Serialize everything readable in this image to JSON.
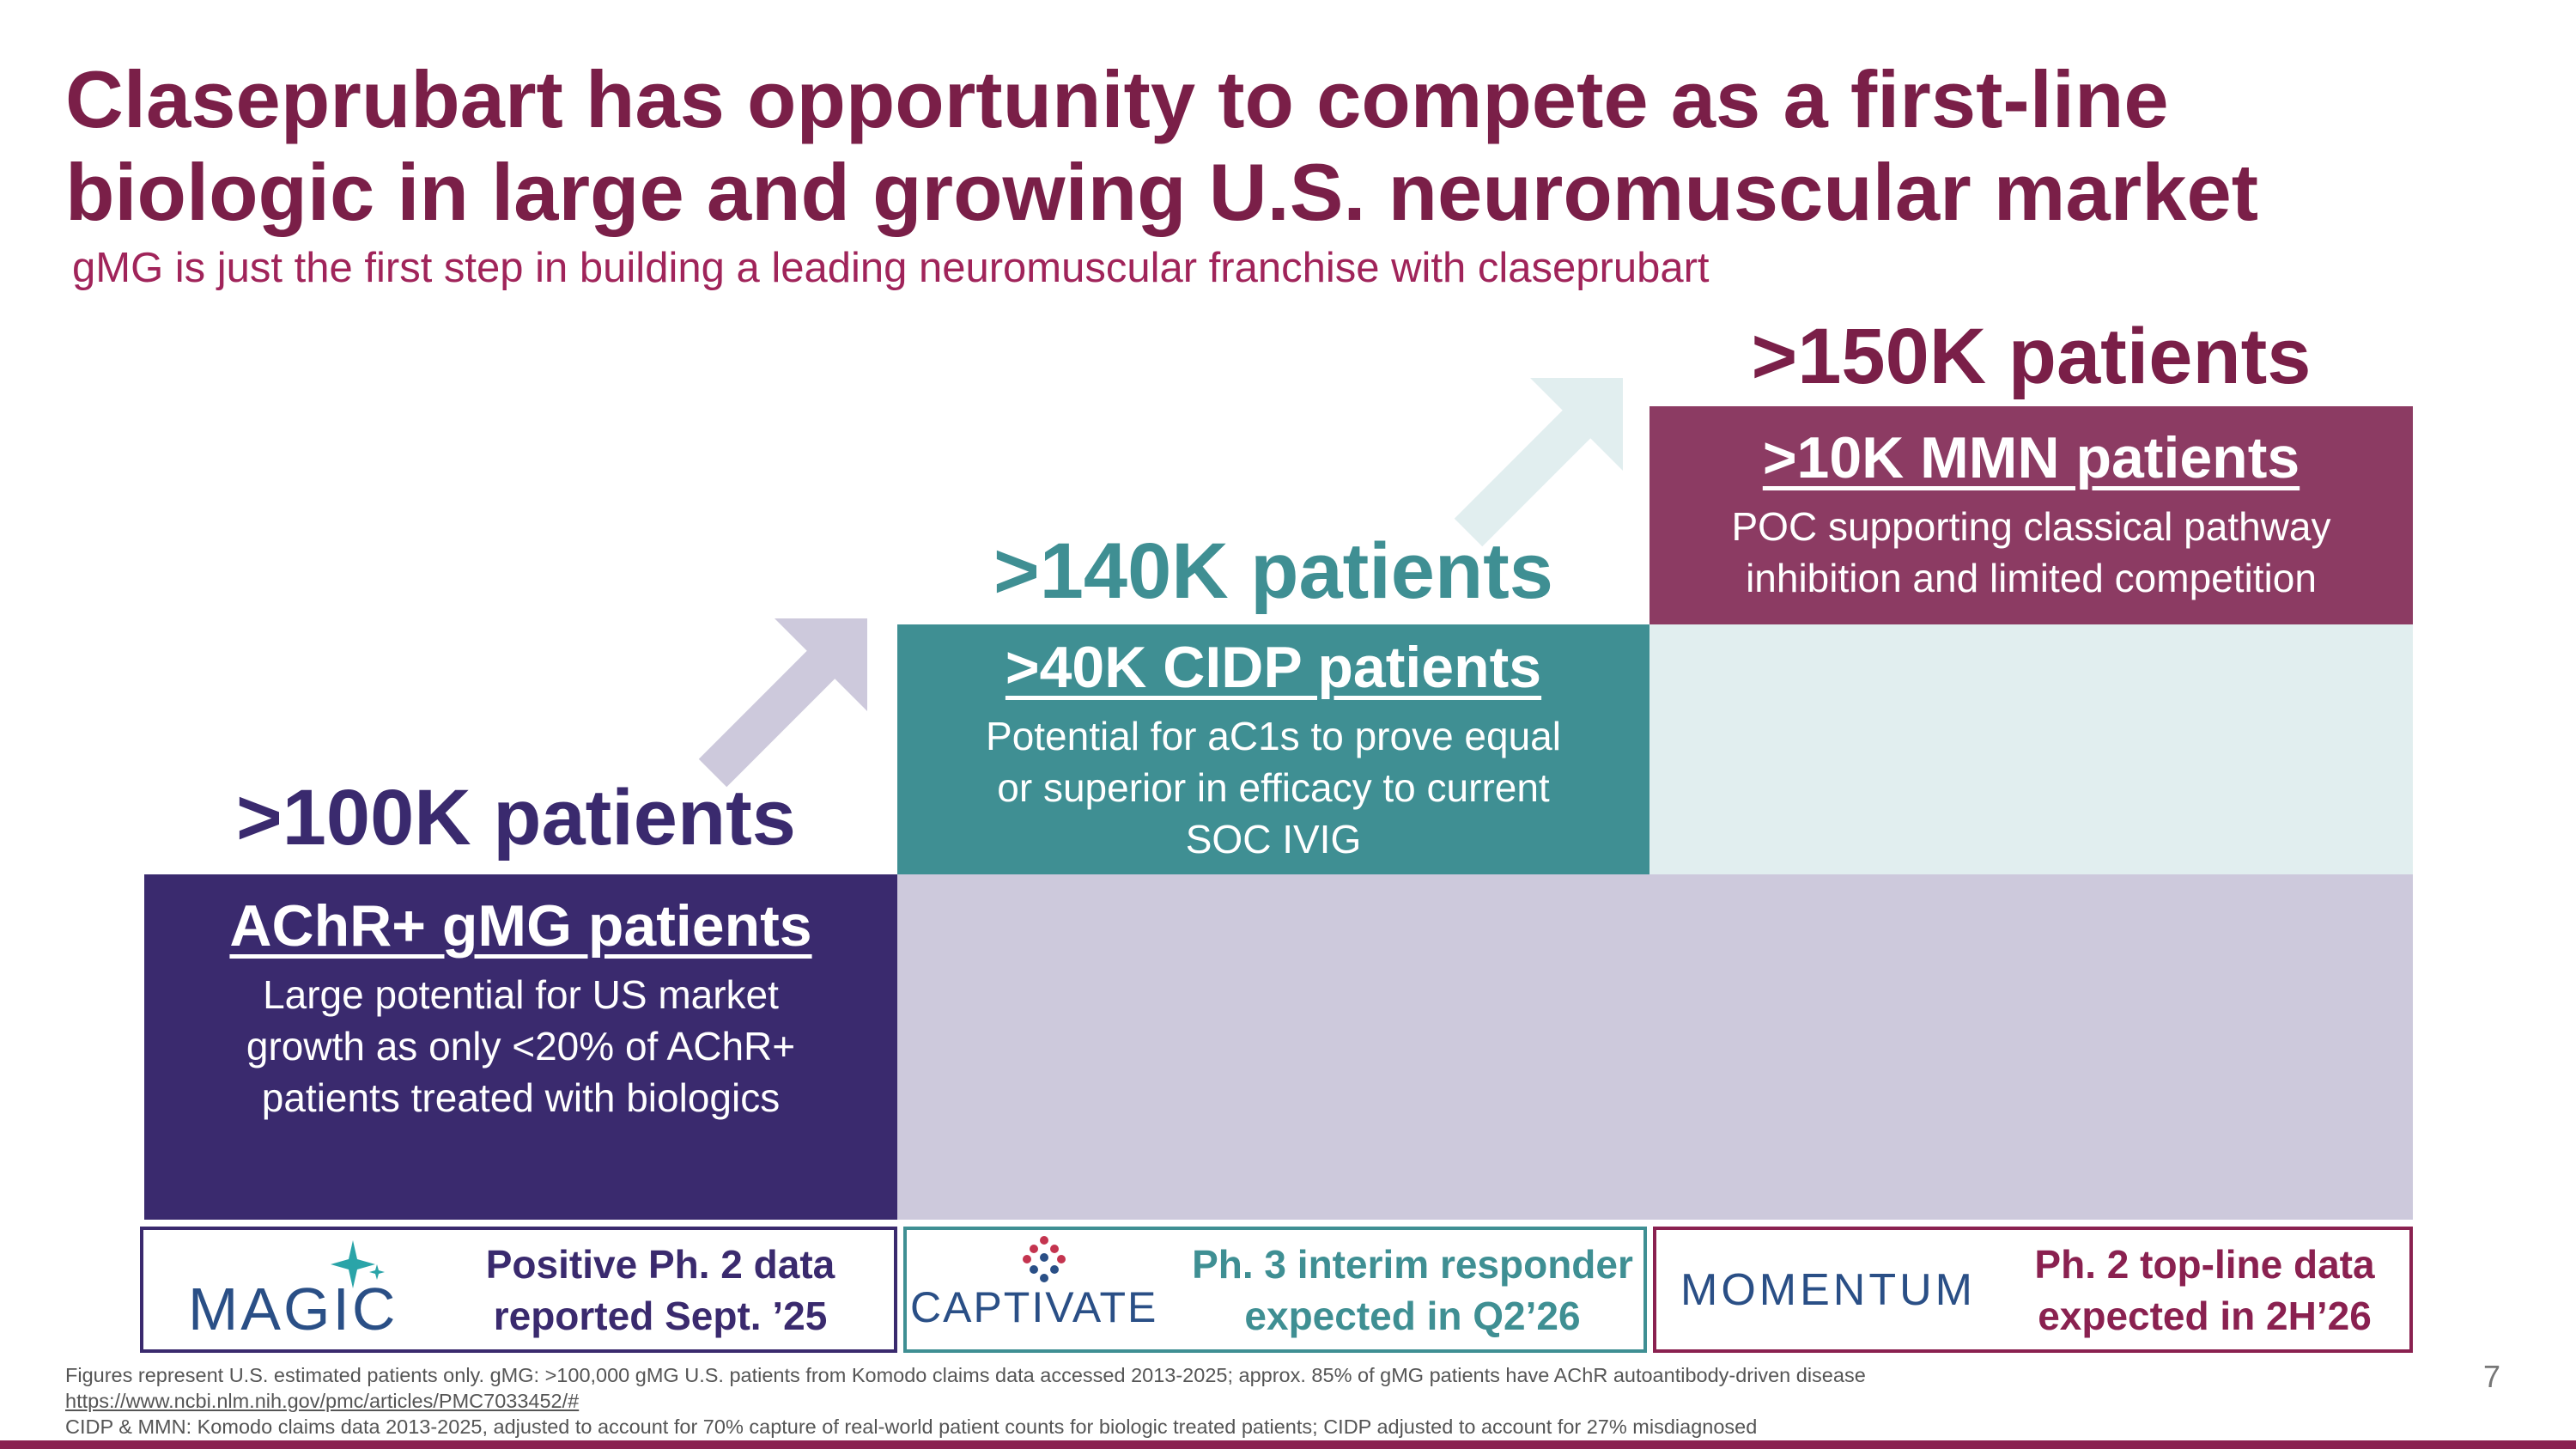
{
  "header": {
    "title_line1": "Claseprubart has opportunity to compete as a first-line",
    "title_line2": "biologic in large and growing U.S. neuromuscular market",
    "subtitle": "gMG is just the first step in building a leading neuromuscular franchise with claseprubart"
  },
  "tiers": [
    {
      "total": ">100K patients",
      "heading": "AChR+ gMG patients",
      "body_lines": [
        "Large potential for US market",
        "growth as only <20% of AChR+",
        "patients treated with biologics"
      ],
      "color": "#3a2a6e",
      "light_color": "#cdc9dc"
    },
    {
      "total": ">140K patients",
      "heading": ">40K CIDP patients",
      "body_lines": [
        "Potential for aC1s to prove equal",
        "or superior in efficacy to current",
        "SOC IVIG"
      ],
      "color": "#3f8f93",
      "light_color": "#e1eeef"
    },
    {
      "total": ">150K patients",
      "heading": ">10K MMN patients",
      "body_lines": [
        "POC supporting classical pathway",
        "inhibition and limited competition"
      ],
      "color": "#8c3b63"
    }
  ],
  "milestones": [
    {
      "logo": "MAGIC",
      "text_lines": [
        "Positive Ph. 2 data",
        "reported Sept. ’25"
      ],
      "color": "#3a2a6e"
    },
    {
      "logo": "CAPTIVATE",
      "text_lines": [
        "Ph. 3 interim responder",
        "expected in Q2’26"
      ],
      "color": "#3f8f93"
    },
    {
      "logo": "MOMENTUM",
      "text_lines": [
        "Ph. 2 top-line data",
        "expected in 2H’26"
      ],
      "color": "#8a2150"
    }
  ],
  "footnotes": {
    "line1": "Figures represent U.S. estimated patients only. gMG: >100,000 gMG U.S. patients from Komodo claims data accessed 2013-2025; approx. 85% of gMG patients have AChR autoantibody-driven disease",
    "link": "https://www.ncbi.nlm.nih.gov/pmc/articles/PMC7033452/#",
    "line3": "CIDP & MMN: Komodo claims data 2013-2025, adjusted to account for 70% capture of real-world patient counts for biologic treated patients; CIDP adjusted to account for 27% misdiagnosed"
  },
  "page_number": "7"
}
